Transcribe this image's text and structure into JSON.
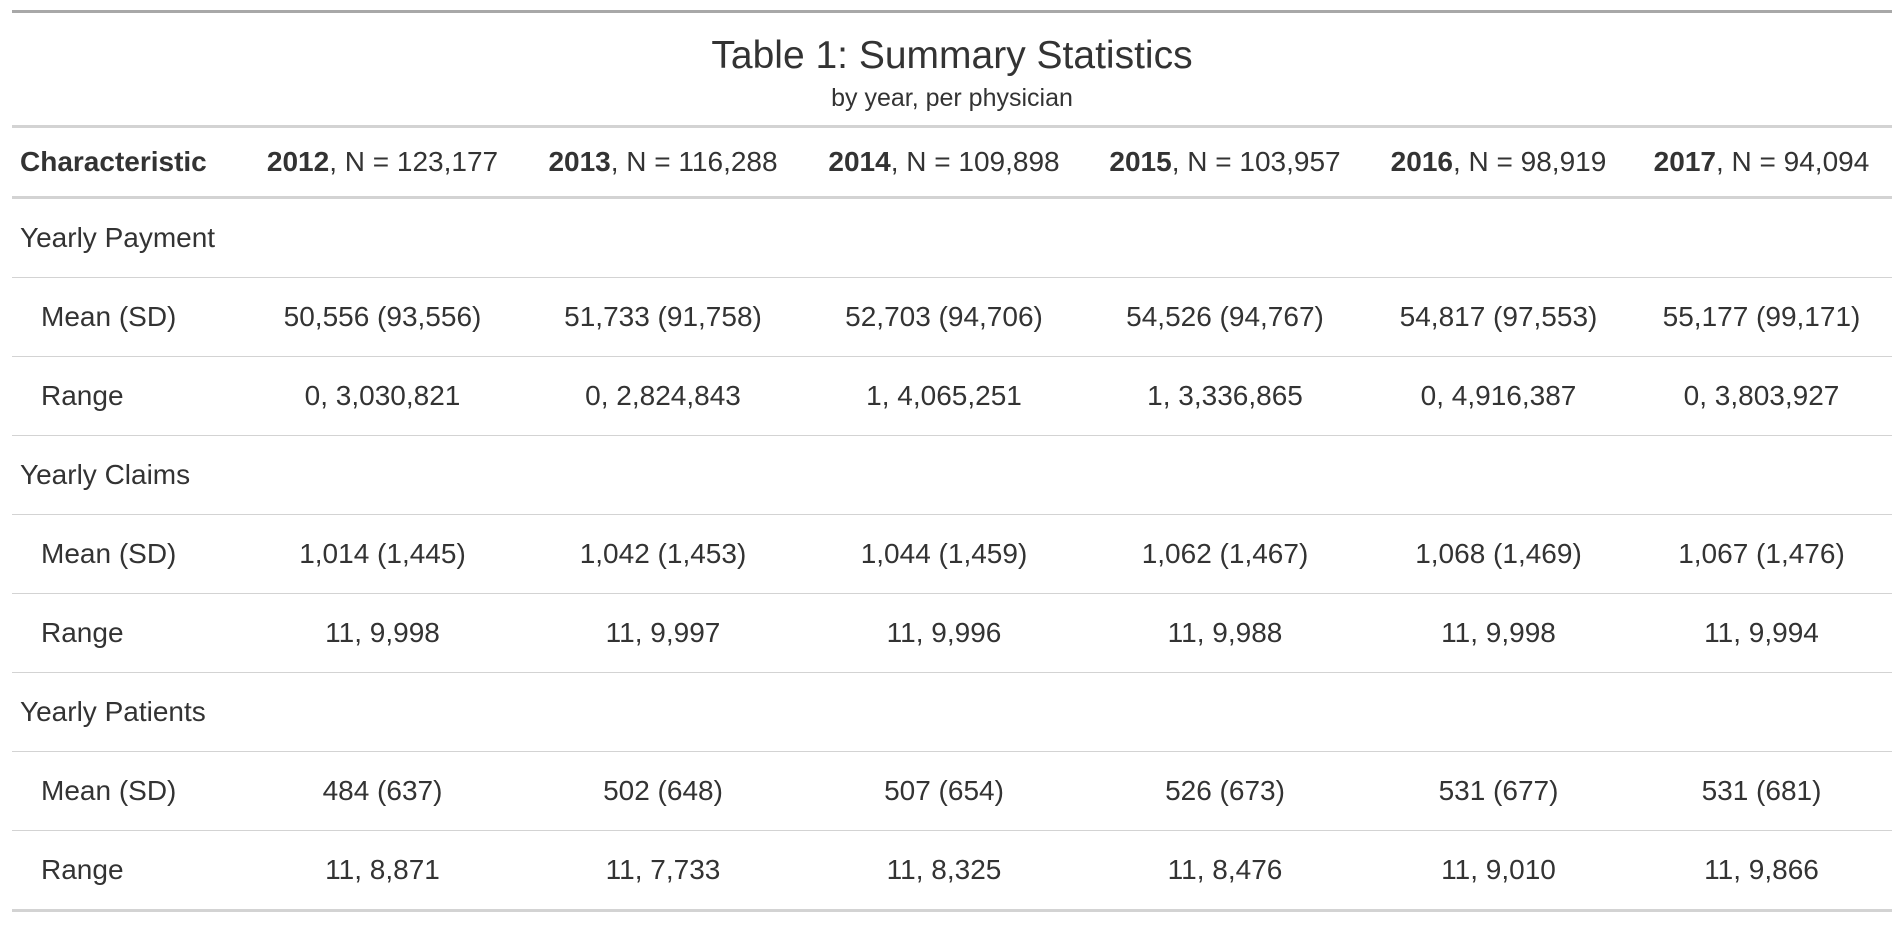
{
  "title": "Table 1: Summary Statistics",
  "subtitle": "by year, per physician",
  "header": {
    "label": "Characteristic",
    "columns": [
      {
        "year": "2012",
        "n": ", N = 123,177"
      },
      {
        "year": "2013",
        "n": ", N = 116,288"
      },
      {
        "year": "2014",
        "n": ", N = 109,898"
      },
      {
        "year": "2015",
        "n": ", N = 103,957"
      },
      {
        "year": "2016",
        "n": ", N = 98,919"
      },
      {
        "year": "2017",
        "n": ", N = 94,094"
      }
    ]
  },
  "groups": [
    {
      "label": "Yearly Payment",
      "rows": [
        {
          "label": "Mean (SD)",
          "cells": [
            "50,556 (93,556)",
            "51,733 (91,758)",
            "52,703 (94,706)",
            "54,526 (94,767)",
            "54,817 (97,553)",
            "55,177 (99,171)"
          ]
        },
        {
          "label": "Range",
          "cells": [
            "0, 3,030,821",
            "0, 2,824,843",
            "1, 4,065,251",
            "1, 3,336,865",
            "0, 4,916,387",
            "0, 3,803,927"
          ]
        }
      ]
    },
    {
      "label": "Yearly Claims",
      "rows": [
        {
          "label": "Mean (SD)",
          "cells": [
            "1,014 (1,445)",
            "1,042 (1,453)",
            "1,044 (1,459)",
            "1,062 (1,467)",
            "1,068 (1,469)",
            "1,067 (1,476)"
          ]
        },
        {
          "label": "Range",
          "cells": [
            "11, 9,998",
            "11, 9,997",
            "11, 9,996",
            "11, 9,988",
            "11, 9,998",
            "11, 9,994"
          ]
        }
      ]
    },
    {
      "label": "Yearly Patients",
      "rows": [
        {
          "label": "Mean (SD)",
          "cells": [
            "484 (637)",
            "502 (648)",
            "507 (654)",
            "526 (673)",
            "531 (677)",
            "531 (681)"
          ]
        },
        {
          "label": "Range",
          "cells": [
            "11, 8,871",
            "11, 7,733",
            "11, 8,325",
            "11, 8,476",
            "11, 9,010",
            "11, 9,866"
          ]
        }
      ]
    }
  ]
}
